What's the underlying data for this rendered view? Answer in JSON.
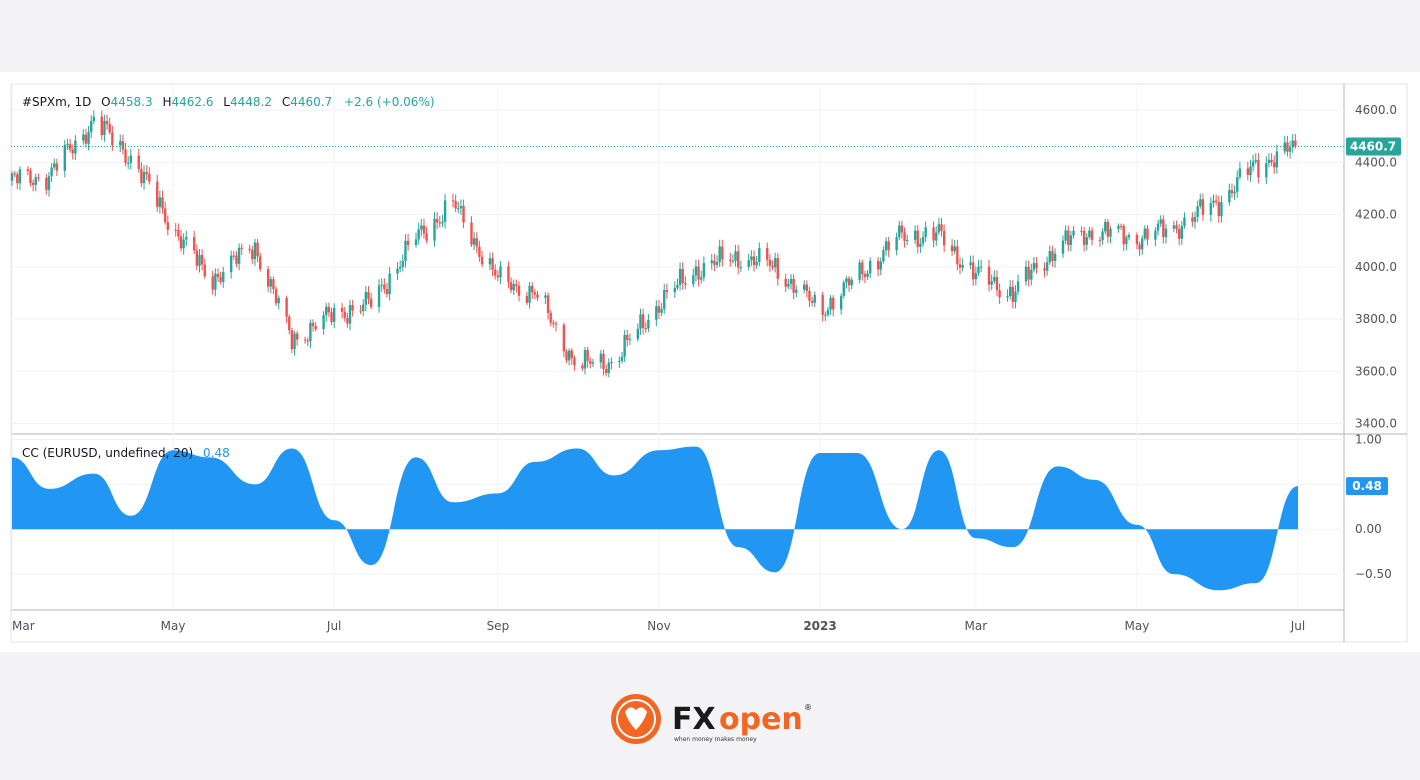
{
  "symbol": "#SPXm, 1D",
  "ohlc": {
    "o_label": "O",
    "o_value": "4458.3",
    "h_label": "H",
    "h_value": "4462.6",
    "l_label": "L",
    "l_value": "4448.2",
    "c_label": "C",
    "c_value": "4460.7",
    "change": "+2.6 (+0.06%)"
  },
  "price_axis": {
    "ticks": [
      "4600.0",
      "4400.0",
      "4200.0",
      "4000.0",
      "3800.0",
      "3600.0",
      "3400.0"
    ],
    "last_price_badge": "4460.7"
  },
  "indicator": {
    "name": "CC (EURUSD, undefined, 20)",
    "value": "0.48",
    "ticks": [
      "1.00",
      "0.50",
      "0.00",
      "−0.50"
    ],
    "badge": "0.48"
  },
  "time_axis": {
    "labels": [
      "Mar",
      "May",
      "Jul",
      "Sep",
      "Nov",
      "2023",
      "Mar",
      "May",
      "Jul"
    ]
  },
  "brand": {
    "name_fx": "FX",
    "name_open": "open",
    "tagline": "when money makes money",
    "registered": "®"
  },
  "colors": {
    "up": "#26a69a",
    "down": "#ef5350",
    "indicator_fill": "#2196f3",
    "text": "#131722",
    "axis_text": "#50535e",
    "brand_orange": "#f26522"
  },
  "chart_data": [
    {
      "type": "candlestick",
      "title": "#SPXm, 1D",
      "x": [
        "2022-03-01",
        "2022-03-15",
        "2022-04-01",
        "2022-04-15",
        "2022-05-01",
        "2022-05-15",
        "2022-06-01",
        "2022-06-15",
        "2022-07-01",
        "2022-07-15",
        "2022-08-01",
        "2022-08-15",
        "2022-09-01",
        "2022-09-15",
        "2022-10-01",
        "2022-10-15",
        "2022-11-01",
        "2022-11-15",
        "2022-12-01",
        "2022-12-15",
        "2023-01-01",
        "2023-01-15",
        "2023-02-01",
        "2023-02-15",
        "2023-03-01",
        "2023-03-15",
        "2023-04-01",
        "2023-04-15",
        "2023-05-01",
        "2023-05-15",
        "2023-06-01",
        "2023-06-15",
        "2023-07-01"
      ],
      "close": [
        4330,
        4350,
        4560,
        4420,
        4150,
        3950,
        4080,
        3720,
        3820,
        3860,
        4110,
        4240,
        3950,
        3900,
        3620,
        3640,
        3860,
        3990,
        4040,
        4000,
        3830,
        3960,
        4120,
        4120,
        3970,
        3900,
        4080,
        4140,
        4110,
        4150,
        4250,
        4390,
        4460.7
      ],
      "ylim": [
        3400,
        4700
      ],
      "y_ticks": [
        3400,
        3600,
        3800,
        4000,
        4200,
        4400,
        4600
      ],
      "last_price": 4460.7,
      "x_tick_labels": [
        "Mar",
        "May",
        "Jul",
        "Sep",
        "Nov",
        "2023",
        "Mar",
        "May",
        "Jul"
      ]
    },
    {
      "type": "area",
      "title": "CC (EURUSD, undefined, 20)",
      "x": [
        "2022-03-01",
        "2022-03-15",
        "2022-04-01",
        "2022-04-15",
        "2022-05-01",
        "2022-05-15",
        "2022-06-01",
        "2022-06-15",
        "2022-07-01",
        "2022-07-15",
        "2022-08-01",
        "2022-08-15",
        "2022-09-01",
        "2022-09-15",
        "2022-10-01",
        "2022-10-15",
        "2022-11-01",
        "2022-11-15",
        "2022-12-01",
        "2022-12-15",
        "2023-01-01",
        "2023-01-15",
        "2023-02-01",
        "2023-02-15",
        "2023-03-01",
        "2023-03-15",
        "2023-04-01",
        "2023-04-15",
        "2023-05-01",
        "2023-05-15",
        "2023-06-01",
        "2023-06-15",
        "2023-07-01"
      ],
      "values": [
        0.8,
        0.45,
        0.62,
        0.15,
        0.88,
        0.8,
        0.5,
        0.9,
        0.1,
        -0.4,
        0.8,
        0.3,
        0.4,
        0.75,
        0.9,
        0.6,
        0.88,
        0.92,
        -0.2,
        -0.48,
        0.85,
        0.85,
        0.0,
        0.88,
        -0.1,
        -0.2,
        0.7,
        0.55,
        0.05,
        -0.5,
        -0.68,
        -0.6,
        0.48
      ],
      "ylim": [
        -0.9,
        1.05
      ],
      "y_ticks": [
        1.0,
        0.5,
        0.0,
        -0.5
      ],
      "last_value": 0.48,
      "fill_color": "#2196f3"
    }
  ]
}
